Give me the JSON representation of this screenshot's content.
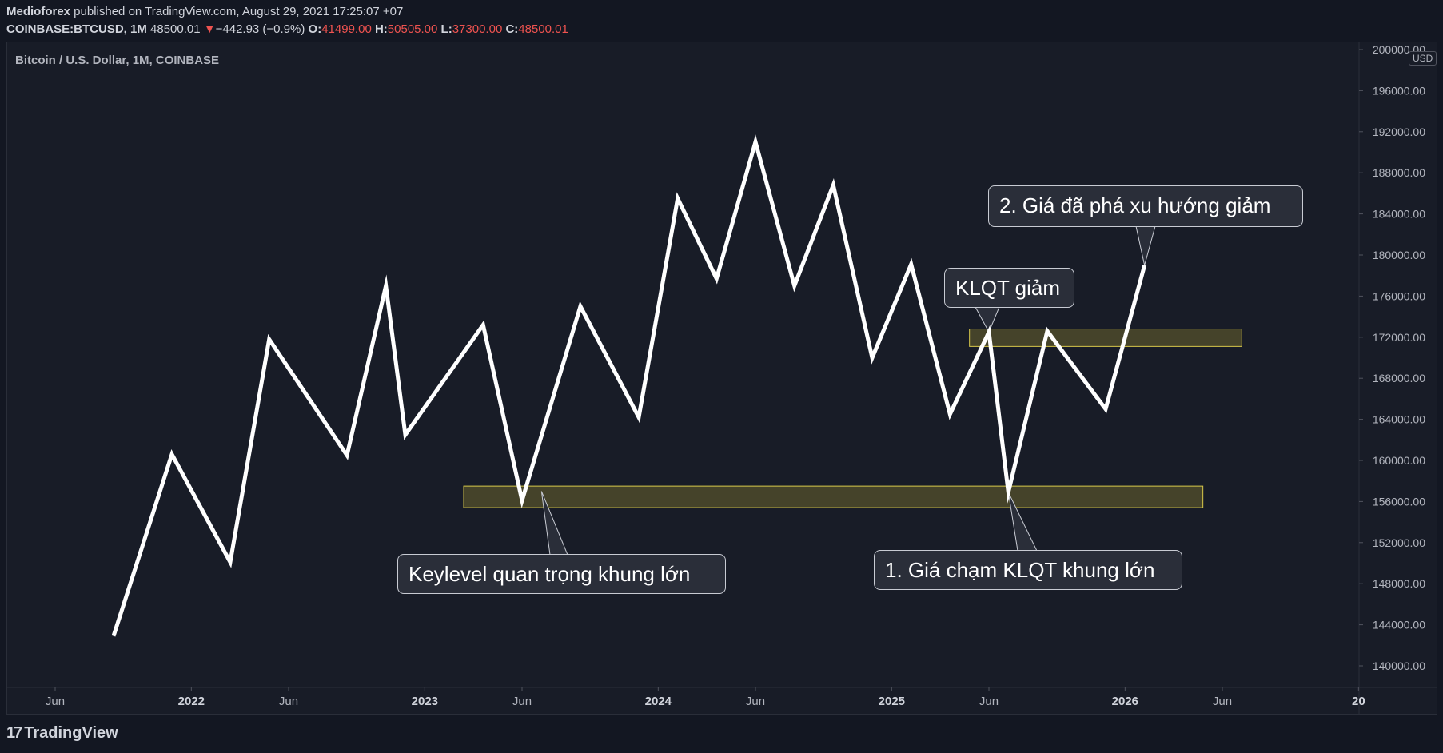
{
  "header": {
    "publisher": "Medioforex",
    "published_text": " published on TradingView.com, August 29, 2021 17:25:07 +07",
    "symbol": "COINBASE:BTCUSD, 1M",
    "last_price": "48500.01",
    "change_arrow": "▼",
    "change": "−442.93 (−0.9%)",
    "o_label": "O:",
    "o_value": "41499.00",
    "h_label": "H:",
    "h_value": "50505.00",
    "l_label": "L:",
    "l_value": "37300.00",
    "c_label": "C:",
    "c_value": "48500.01"
  },
  "instrument_title": "Bitcoin / U.S. Dollar, 1M, COINBASE",
  "currency_badge": "USD",
  "footer_brand": "TradingView",
  "footer_logo": "17",
  "colors": {
    "background": "#131722",
    "panel": "#181c27",
    "line": "#ffffff",
    "zone_fill": "#4d4a2c",
    "zone_border": "#d8c94a",
    "red": "#ef5350"
  },
  "chart_data": {
    "type": "line",
    "series": [
      {
        "values": [
          [
            "2021-09",
            142900
          ],
          [
            "2021-12",
            160600
          ],
          [
            "2022-03",
            150100
          ],
          [
            "2022-05",
            171800
          ],
          [
            "2022-09",
            160500
          ],
          [
            "2022-11",
            177000
          ],
          [
            "2022-12",
            162500
          ],
          [
            "2023-04",
            173200
          ],
          [
            "2023-06",
            156100
          ],
          [
            "2023-09",
            175000
          ],
          [
            "2023-12",
            164200
          ],
          [
            "2024-02",
            185500
          ],
          [
            "2024-04",
            177700
          ],
          [
            "2024-06",
            191000
          ],
          [
            "2024-08",
            177000
          ],
          [
            "2024-10",
            186800
          ],
          [
            "2024-12",
            170000
          ],
          [
            "2025-02",
            179100
          ],
          [
            "2025-04",
            164500
          ],
          [
            "2025-06",
            172500
          ],
          [
            "2025-07",
            156900
          ],
          [
            "2025-09",
            172600
          ],
          [
            "2025-12",
            165000
          ],
          [
            "2026-02",
            179000
          ]
        ]
      }
    ],
    "x_axis": {
      "ticks": [
        "Jun",
        "2022",
        "Jun",
        "2023",
        "Jun",
        "2024",
        "Jun",
        "2025",
        "Jun",
        "2026",
        "Jun",
        "20"
      ],
      "tick_dates": [
        "2021-06",
        "2022-01",
        "2022-06",
        "2023-01",
        "2023-06",
        "2024-01",
        "2024-06",
        "2025-01",
        "2025-06",
        "2026-01",
        "2026-06",
        "2027-01"
      ]
    },
    "y_axis": {
      "ticks": [
        "200000.00",
        "196000.00",
        "192000.00",
        "188000.00",
        "184000.00",
        "180000.00",
        "176000.00",
        "172000.00",
        "168000.00",
        "164000.00",
        "160000.00",
        "156000.00",
        "152000.00",
        "148000.00",
        "144000.00",
        "140000.00"
      ],
      "range": [
        138000,
        200000
      ],
      "position": "right"
    },
    "zones": [
      {
        "x_range": [
          "2023-03",
          "2026-05"
        ],
        "y_range": [
          155400,
          157500
        ]
      },
      {
        "x_range": [
          "2025-05",
          "2026-07"
        ],
        "y_range": [
          171100,
          172800
        ]
      }
    ],
    "annotations": [
      {
        "text": "Keylevel quan trọng khung lớn"
      },
      {
        "text": "1. Giá chạm KLQT khung lớn"
      },
      {
        "text": "KLQT giảm"
      },
      {
        "text": "2. Giá đã phá xu hướng giảm"
      }
    ]
  }
}
